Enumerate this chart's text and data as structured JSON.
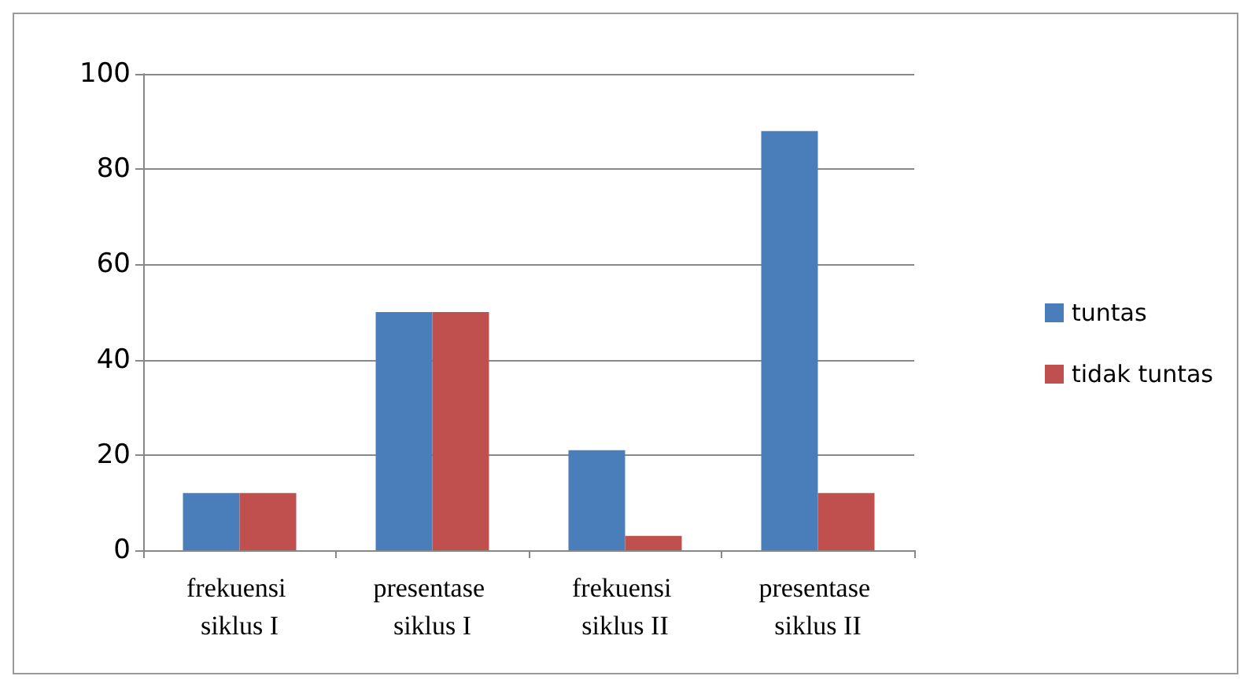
{
  "chart_data": {
    "type": "bar",
    "categories": [
      "frekuensi siklus I",
      "presentase siklus I",
      "frekuensi siklus II",
      "presentase siklus II"
    ],
    "series": [
      {
        "name": "tuntas",
        "color": "#4a7ebb",
        "values": [
          12,
          50,
          21,
          88
        ]
      },
      {
        "name": "tidak tuntas",
        "color": "#c0504d",
        "values": [
          12,
          50,
          3,
          12
        ]
      }
    ],
    "ylim": [
      0,
      100
    ],
    "yticks": [
      0,
      20,
      40,
      60,
      80,
      100
    ],
    "grid": "y",
    "legend": "right"
  }
}
